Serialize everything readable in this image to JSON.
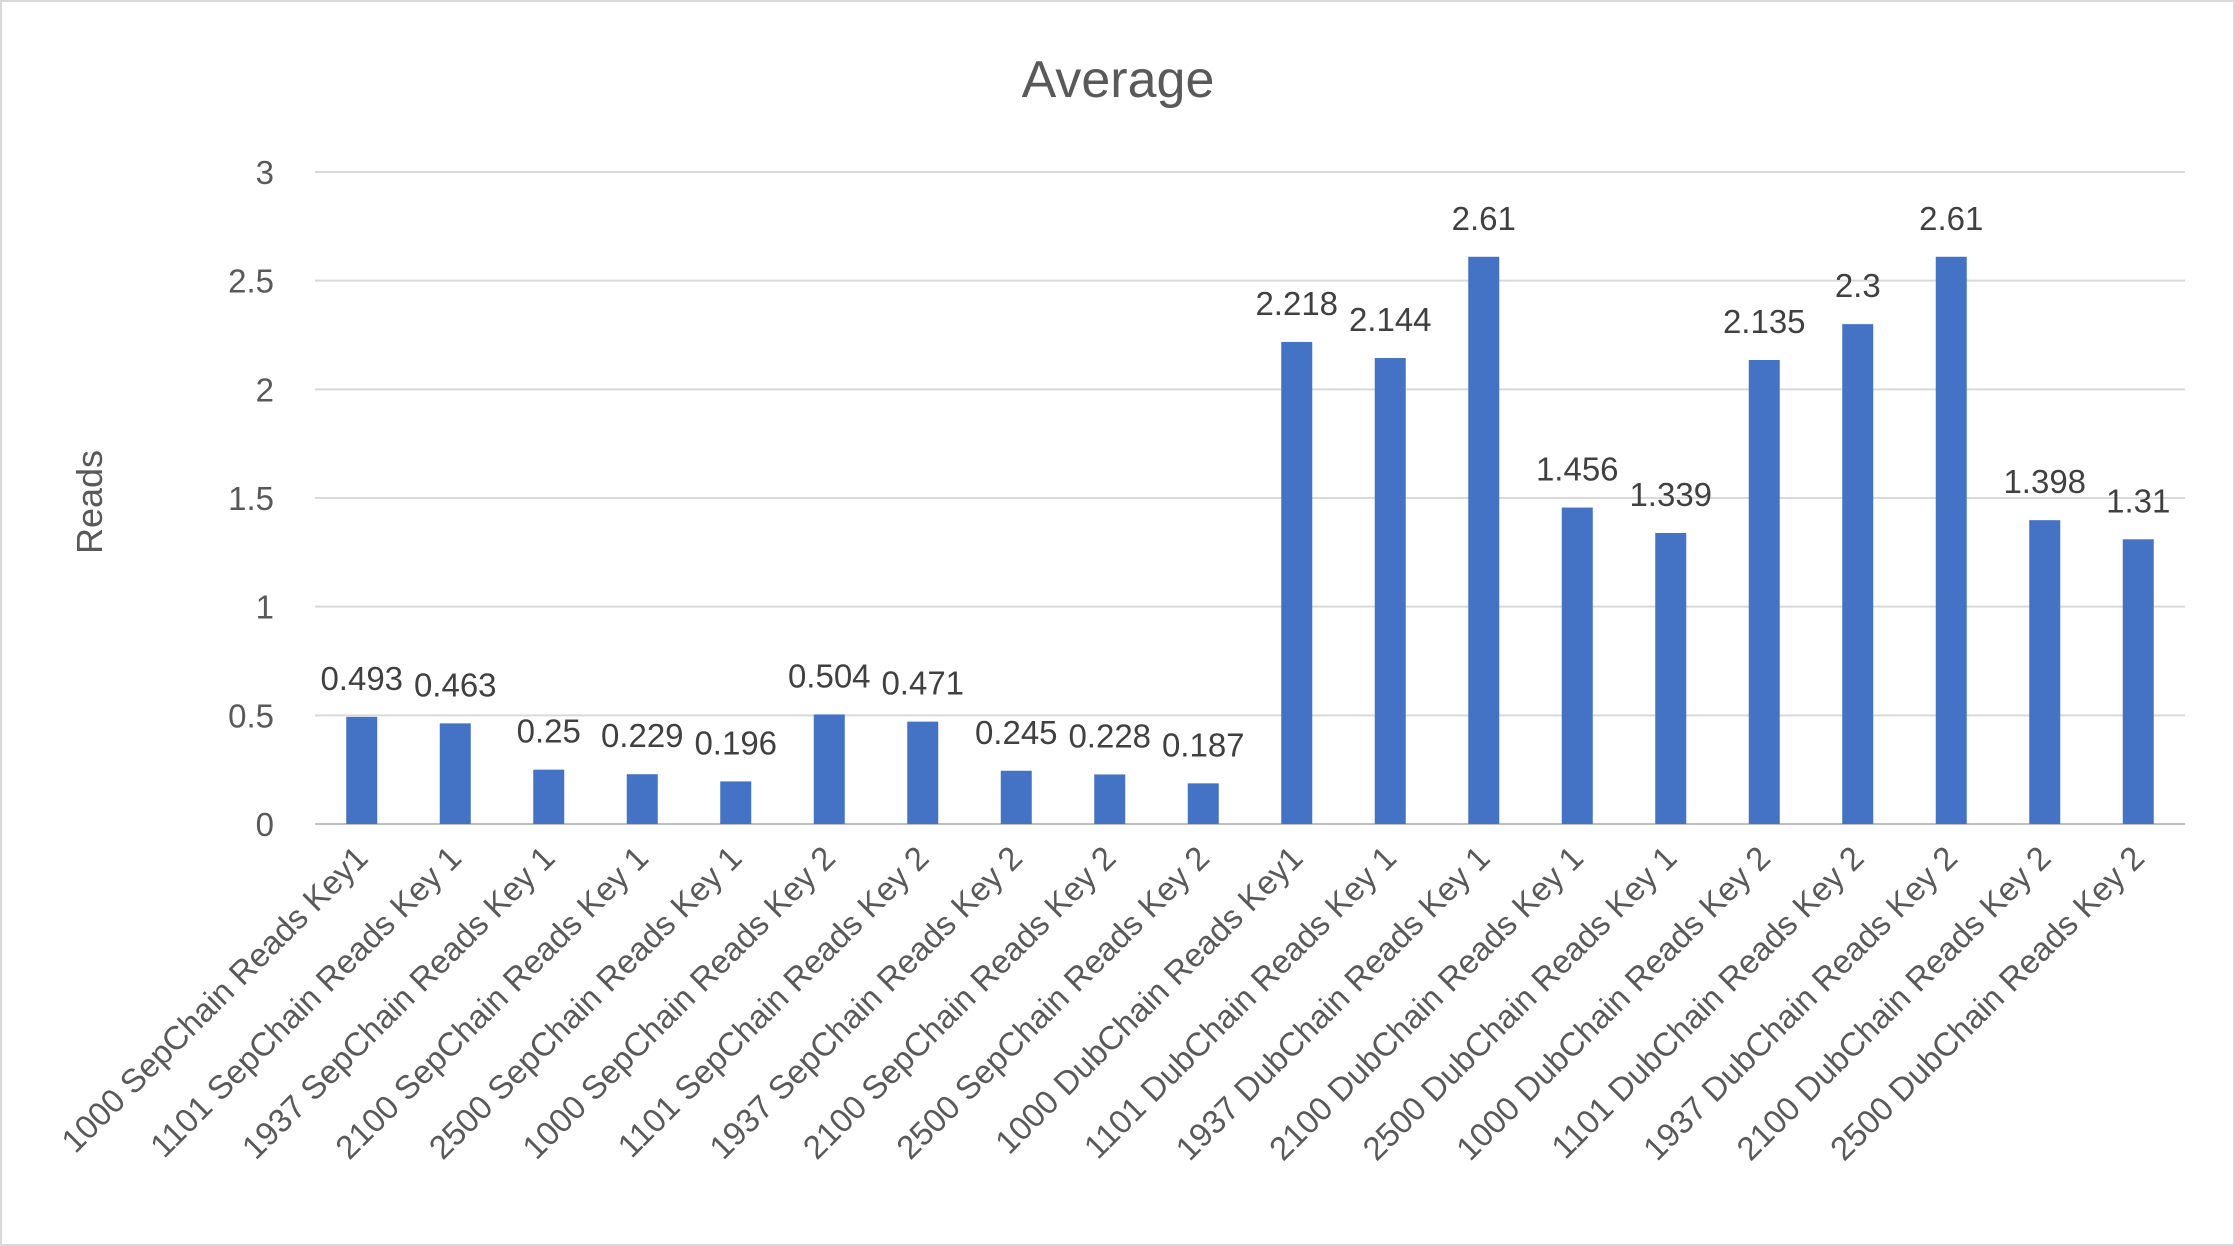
{
  "chart_data": {
    "type": "bar",
    "title": "Average",
    "xlabel": "",
    "ylabel": "Reads",
    "ylim": [
      0,
      3
    ],
    "yticks": [
      0,
      0.5,
      1,
      1.5,
      2,
      2.5,
      3
    ],
    "ytick_labels": [
      "0",
      "0.5",
      "1",
      "1.5",
      "2",
      "2.5",
      "3"
    ],
    "grid": true,
    "legend": "none",
    "bar_color": "#4472c4",
    "categories": [
      "1000 SepChain Reads Key1",
      "1101 SepChain Reads Key 1",
      "1937 SepChain Reads Key 1",
      "2100 SepChain Reads Key 1",
      "2500 SepChain Reads Key 1",
      "1000 SepChain Reads Key 2",
      "1101 SepChain Reads Key 2",
      "1937 SepChain Reads Key 2",
      "2100 SepChain Reads Key 2",
      "2500 SepChain Reads Key 2",
      "1000 DubChain Reads Key1",
      "1101 DubChain Reads Key 1",
      "1937 DubChain Reads Key 1",
      "2100 DubChain Reads Key 1",
      "2500 DubChain Reads Key 1",
      "1000 DubChain Reads Key 2",
      "1101 DubChain Reads Key 2",
      "1937 DubChain Reads Key 2",
      "2100 DubChain Reads Key 2",
      "2500 DubChain Reads Key 2"
    ],
    "values": [
      0.493,
      0.463,
      0.25,
      0.229,
      0.196,
      0.504,
      0.471,
      0.245,
      0.228,
      0.187,
      2.218,
      2.144,
      2.61,
      1.456,
      1.339,
      2.135,
      2.3,
      2.61,
      1.398,
      1.31
    ],
    "data_labels": [
      "0.493",
      "0.463",
      "0.25",
      "0.229",
      "0.196",
      "0.504",
      "0.471",
      "0.245",
      "0.228",
      "0.187",
      "2.218",
      "2.144",
      "2.61",
      "1.456",
      "1.339",
      "2.135",
      "2.3",
      "2.61",
      "1.398",
      "1.31"
    ]
  }
}
